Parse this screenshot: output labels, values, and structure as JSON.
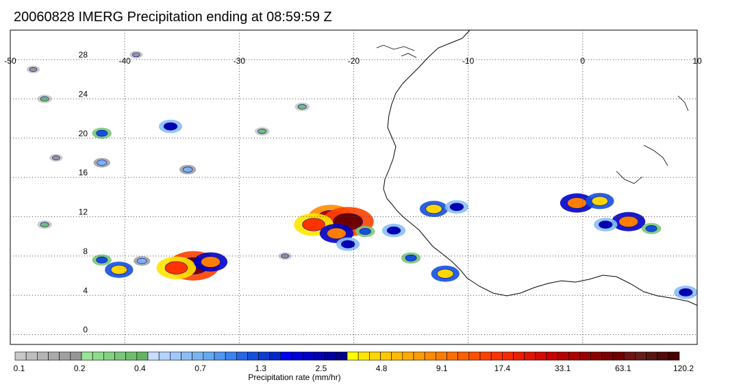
{
  "title": "20060828 IMERG Precipitation ending at 08:59:59 Z",
  "map": {
    "lon_min": -50,
    "lon_max": 10,
    "lat_min": -1,
    "lat_max": 31,
    "x_ticks": [
      {
        "lon": -50,
        "label": "-50"
      },
      {
        "lon": -40,
        "label": "-40"
      },
      {
        "lon": -30,
        "label": "-30"
      },
      {
        "lon": -20,
        "label": "-20"
      },
      {
        "lon": -10,
        "label": "-10"
      },
      {
        "lon": 0,
        "label": "0"
      },
      {
        "lon": 10,
        "label": "10"
      }
    ],
    "y_ticks": [
      {
        "lat": 0,
        "label": "0"
      },
      {
        "lat": 4,
        "label": "4"
      },
      {
        "lat": 8,
        "label": "8"
      },
      {
        "lat": 12,
        "label": "12"
      },
      {
        "lat": 16,
        "label": "16"
      },
      {
        "lat": 20,
        "label": "20"
      },
      {
        "lat": 24,
        "label": "24"
      },
      {
        "lat": 28,
        "label": "28"
      }
    ],
    "grid": true
  },
  "precip_cells": [
    {
      "lon": -22.0,
      "lat": 11.9,
      "rate": 33.1
    },
    {
      "lon": -20.5,
      "lat": 11.5,
      "rate": 63.1
    },
    {
      "lon": -23.5,
      "lat": 11.2,
      "rate": 17.4
    },
    {
      "lon": -21.5,
      "lat": 10.3,
      "rate": 9.1
    },
    {
      "lon": -20.5,
      "lat": 9.2,
      "rate": 2.5
    },
    {
      "lon": -19.0,
      "lat": 10.5,
      "rate": 1.3
    },
    {
      "lon": -34.0,
      "lat": 7.0,
      "rate": 63.1
    },
    {
      "lon": -35.5,
      "lat": 6.8,
      "rate": 17.4
    },
    {
      "lon": -32.5,
      "lat": 7.4,
      "rate": 9.1
    },
    {
      "lon": -40.5,
      "lat": 6.6,
      "rate": 4.8
    },
    {
      "lon": -42.0,
      "lat": 7.6,
      "rate": 1.3
    },
    {
      "lon": -38.5,
      "lat": 7.5,
      "rate": 0.7
    },
    {
      "lon": -0.5,
      "lat": 13.4,
      "rate": 9.1
    },
    {
      "lon": 1.5,
      "lat": 13.6,
      "rate": 4.8
    },
    {
      "lon": 4.0,
      "lat": 11.5,
      "rate": 9.1
    },
    {
      "lon": 2.0,
      "lat": 11.2,
      "rate": 2.5
    },
    {
      "lon": 6.0,
      "lat": 10.8,
      "rate": 1.3
    },
    {
      "lon": -13.0,
      "lat": 12.8,
      "rate": 4.8
    },
    {
      "lon": -11.0,
      "lat": 13.0,
      "rate": 2.5
    },
    {
      "lon": -12.0,
      "lat": 6.2,
      "rate": 4.8
    },
    {
      "lon": -15.0,
      "lat": 7.8,
      "rate": 1.3
    },
    {
      "lon": -16.5,
      "lat": 10.6,
      "rate": 2.5
    },
    {
      "lon": -42.0,
      "lat": 20.5,
      "rate": 1.3
    },
    {
      "lon": -42.0,
      "lat": 17.5,
      "rate": 0.7
    },
    {
      "lon": -28.0,
      "lat": 20.7,
      "rate": 0.4
    },
    {
      "lon": -36.0,
      "lat": 21.2,
      "rate": 2.5
    },
    {
      "lon": -24.5,
      "lat": 23.2,
      "rate": 0.4
    },
    {
      "lon": -46.0,
      "lat": 18.0,
      "rate": 0.2
    },
    {
      "lon": -48.0,
      "lat": 27.0,
      "rate": 0.2
    },
    {
      "lon": -39.0,
      "lat": 28.5,
      "rate": 0.2
    },
    {
      "lon": -47.0,
      "lat": 24.0,
      "rate": 0.4
    },
    {
      "lon": -34.5,
      "lat": 16.8,
      "rate": 0.7
    },
    {
      "lon": 9.0,
      "lat": 4.3,
      "rate": 2.5
    },
    {
      "lon": -26.0,
      "lat": 8.0,
      "rate": 0.2
    },
    {
      "lon": -47.0,
      "lat": 11.2,
      "rate": 0.4
    }
  ],
  "colorbar": {
    "ticks": [
      "0.1",
      "0.2",
      "0.4",
      "0.7",
      "1.3",
      "2.5",
      "4.8",
      "9.1",
      "17.4",
      "33.1",
      "63.1",
      "120.2"
    ],
    "title": "Precipitation rate (mm/hr)",
    "colors": [
      "#c8c8c8",
      "#bebebe",
      "#b4b4b4",
      "#aaaaaa",
      "#a0a0a0",
      "#969696",
      "#96e696",
      "#8cdc8c",
      "#82d282",
      "#78c878",
      "#6ebe6e",
      "#64b464",
      "#c8dcff",
      "#b4d2ff",
      "#a0c8ff",
      "#8cbef5",
      "#78b4f0",
      "#64aaf0",
      "#5096f0",
      "#3c82f0",
      "#2864e6",
      "#1450dc",
      "#0a3cd2",
      "#0028c8",
      "#0000f0",
      "#0000dc",
      "#0000c8",
      "#0000b4",
      "#0000a0",
      "#00008c",
      "#ffff00",
      "#ffe600",
      "#ffd700",
      "#ffc800",
      "#ffb900",
      "#ffaa00",
      "#ff9b00",
      "#ff8c00",
      "#ff7d00",
      "#ff6e00",
      "#ff5f00",
      "#ff5000",
      "#ff4100",
      "#ff3200",
      "#f52800",
      "#eb1e00",
      "#e11400",
      "#d70a00",
      "#c80000",
      "#b90000",
      "#aa0000",
      "#9b0000",
      "#8c0000",
      "#7d0000",
      "#6e0000",
      "#6e1414",
      "#641e1e",
      "#5a1414",
      "#500a0a",
      "#460000"
    ]
  }
}
